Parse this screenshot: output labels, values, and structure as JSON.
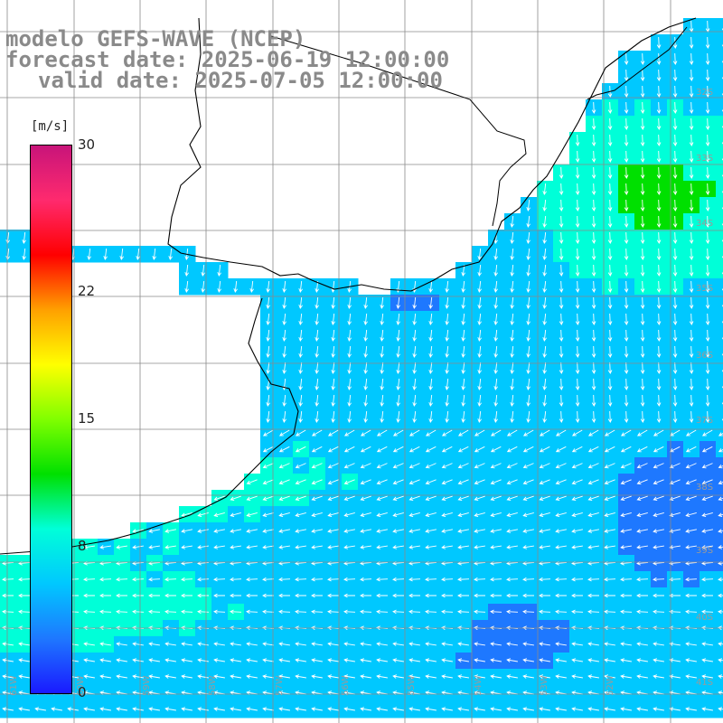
{
  "header": {
    "line1": "modelo GEFS-WAVE (NCEP)",
    "line2": "forecast date: 2025-06-19 12:00:00",
    "line3": "valid date: 2025-07-05 12:00:00"
  },
  "colorbar": {
    "unit": "[m/s]",
    "ticks": [
      {
        "label": "30",
        "value": 30
      },
      {
        "label": "22",
        "value": 22
      },
      {
        "label": "15",
        "value": 15
      },
      {
        "label": "8",
        "value": 8
      },
      {
        "label": "0",
        "value": 0
      }
    ],
    "colors": [
      "#1a1aff",
      "#1e78ff",
      "#00c8ff",
      "#00ffd8",
      "#00e000",
      "#80ff00",
      "#ffff00",
      "#ffa000",
      "#ff0000",
      "#ff2a6e",
      "#c8147a"
    ]
  },
  "grid": {
    "lat_labels": [
      "32S",
      "33S",
      "34S",
      "35S",
      "36S",
      "37S",
      "38S",
      "39S",
      "40S",
      "41S"
    ],
    "lon_labels": [
      "61W",
      "60W",
      "59W",
      "58W",
      "57W",
      "56W",
      "55W",
      "54W",
      "53W",
      "52W"
    ]
  }
}
